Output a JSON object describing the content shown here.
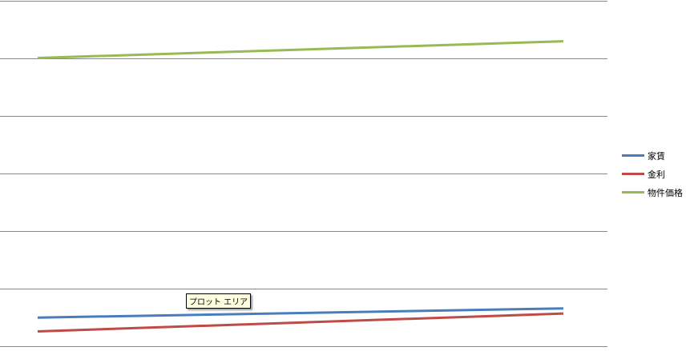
{
  "chart_data": {
    "type": "line",
    "title": "",
    "xlabel": "",
    "ylabel": "",
    "categories": [
      "",
      ""
    ],
    "ylim": [
      0,
      6
    ],
    "grid": true,
    "legend_position": "right",
    "series": [
      {
        "name": "家賃",
        "color": "#4a7ebb",
        "values": [
          0.49,
          0.65
        ]
      },
      {
        "name": "金利",
        "color": "#be4b48",
        "values": [
          0.25,
          0.56
        ]
      },
      {
        "name": "物件価格",
        "color": "#98b954",
        "values": [
          5.0,
          5.29
        ]
      }
    ]
  },
  "tooltip": "プロット エリア"
}
